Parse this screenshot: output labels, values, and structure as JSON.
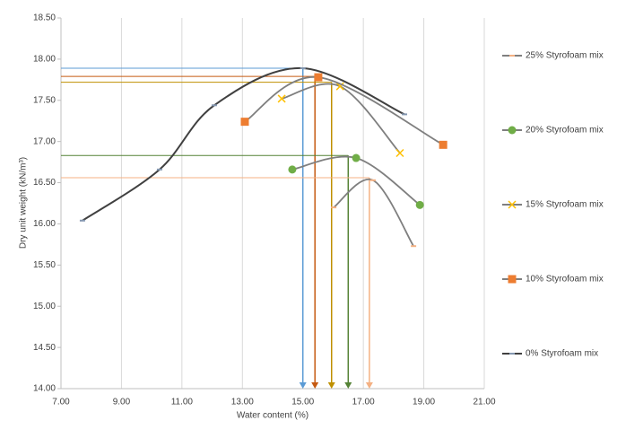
{
  "chart_data": {
    "type": "scatter",
    "x_label": "Water content (%)",
    "y_label": "Dry unit weight (kN/m³)",
    "xlim": [
      7,
      21
    ],
    "ylim": [
      14,
      18.5
    ],
    "xticks": [
      {
        "value": 7,
        "label": "7.00"
      },
      {
        "value": 9,
        "label": "9.00"
      },
      {
        "value": 11,
        "label": "11.00"
      },
      {
        "value": 13,
        "label": "13.00"
      },
      {
        "value": 15,
        "label": "15.00"
      },
      {
        "value": 17,
        "label": "17.00"
      },
      {
        "value": 19,
        "label": "19.00"
      },
      {
        "value": 21,
        "label": "21.00"
      }
    ],
    "yticks": [
      {
        "value": 14,
        "label": "14.00"
      },
      {
        "value": 14.5,
        "label": "14.50"
      },
      {
        "value": 15,
        "label": "15.00"
      },
      {
        "value": 15.5,
        "label": "15.50"
      },
      {
        "value": 16,
        "label": "16.00"
      },
      {
        "value": 16.5,
        "label": "16.50"
      },
      {
        "value": 17,
        "label": "17.00"
      },
      {
        "value": 17.5,
        "label": "17.50"
      },
      {
        "value": 18,
        "label": "18.00"
      },
      {
        "value": 18.5,
        "label": "18.50"
      }
    ],
    "grid": "x",
    "smooth": true,
    "series": [
      {
        "name": "25% Styrofoam mix",
        "color": "#f4b183",
        "line_color": "#7f7f7f",
        "marker": "dash",
        "x": [
          16.02,
          17.32,
          18.66
        ],
        "values": [
          16.2,
          16.53,
          15.73
        ]
      },
      {
        "name": "20% Styrofoam mix",
        "color": "#70ad47",
        "line_color": "#7f7f7f",
        "marker": "circle",
        "x": [
          14.65,
          16.76,
          18.87
        ],
        "values": [
          16.66,
          16.8,
          16.23
        ]
      },
      {
        "name": "15% Styrofoam mix",
        "color": "#ffc000",
        "line_color": "#7f7f7f",
        "marker": "x",
        "x": [
          14.3,
          16.23,
          18.21
        ],
        "values": [
          17.52,
          17.67,
          16.86
        ]
      },
      {
        "name": "10% Styrofoam mix",
        "color": "#ed7d31",
        "line_color": "#7f7f7f",
        "marker": "square",
        "x": [
          13.08,
          15.51,
          19.64
        ],
        "values": [
          17.24,
          17.78,
          16.96
        ]
      },
      {
        "name": "0% Styrofoam mix",
        "color": "#8497b0",
        "line_color": "#404040",
        "marker": "dash",
        "x": [
          7.71,
          10.26,
          12.07,
          15.0,
          18.36
        ],
        "values": [
          16.04,
          16.66,
          17.44,
          17.89,
          17.33
        ]
      }
    ],
    "reference_lines": [
      {
        "x": 15.0,
        "y": 17.89,
        "color": "#5b9bd5"
      },
      {
        "x": 15.4,
        "y": 17.79,
        "color": "#c55a11"
      },
      {
        "x": 15.95,
        "y": 17.72,
        "color": "#bf9000"
      },
      {
        "x": 16.5,
        "y": 16.83,
        "color": "#548235"
      },
      {
        "x": 17.2,
        "y": 16.56,
        "color": "#f4b183"
      }
    ]
  }
}
